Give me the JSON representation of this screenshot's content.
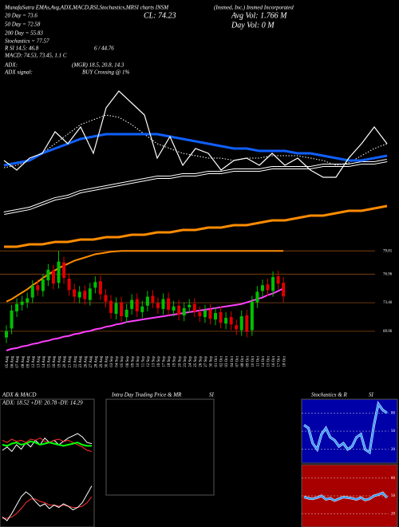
{
  "header": {
    "line1": "MunafaSutra EMAs,Avg,ADX,MACD,RSI,Stochastics,MRSI charts INSM",
    "company": "(Insmed, Inc.) Insmed Incorporated",
    "ma20": "20 Day = 73.6",
    "ma50": "50 Day = 72.58",
    "ma200": "200 Day = 55.83",
    "stoch": "Stochastics = 77.57",
    "rsi": "R SI 14.5: 46.8",
    "rsi2": "6 / 44.76",
    "macd": "MACD: 74.53, 73.45, 1.1 C",
    "adx_label": "ADX:",
    "adx_values": "(MGR) 18.5, 20.8, 14.3",
    "signal_label": "ADX signal:",
    "signal": "BUY Crossing @ 1%",
    "close": "CL: 74.23",
    "avg_vol": "Avg Vol: 1.766 M",
    "day_vol": "Day Vol: 0 M"
  },
  "main_chart": {
    "ylim": [
      -5,
      100
    ],
    "series": [
      {
        "color": "#ffffff",
        "style": "double",
        "values": [
          11,
          12,
          13,
          15,
          17,
          18,
          20,
          21,
          22,
          23,
          24,
          25,
          26,
          26,
          27,
          27,
          28,
          28,
          29,
          29,
          29,
          30,
          30,
          30,
          30,
          31,
          31,
          31,
          32,
          32,
          33
        ]
      },
      {
        "color": "#ff8c00",
        "style": "thick",
        "values": [
          -3,
          -3,
          -2,
          -2,
          -1,
          -1,
          0,
          0,
          1,
          1,
          2,
          2,
          3,
          3,
          4,
          4,
          5,
          5,
          6,
          6,
          7,
          8,
          8,
          9,
          10,
          10,
          11,
          12,
          12,
          13,
          14
        ]
      },
      {
        "color": "#ffffff",
        "style": "dotted",
        "values": [
          30,
          31,
          33,
          36,
          40,
          44,
          48,
          50,
          52,
          51,
          48,
          44,
          40,
          38,
          36,
          35,
          34,
          34,
          33,
          34,
          34,
          35,
          35,
          35,
          34,
          33,
          31,
          32,
          35,
          38,
          40
        ]
      },
      {
        "color": "#1060ff",
        "style": "thick",
        "values": [
          31,
          32,
          33,
          36,
          38,
          40,
          42,
          43,
          44,
          44,
          44,
          44,
          44,
          43,
          42,
          41,
          40,
          39,
          38,
          38,
          37,
          37,
          37,
          36,
          36,
          35,
          34,
          33,
          33,
          34,
          35
        ]
      },
      {
        "color": "#ffffff",
        "style": "thin",
        "values": [
          33,
          29,
          34,
          36,
          45,
          40,
          47,
          36,
          55,
          62,
          57,
          52,
          34,
          43,
          31,
          38,
          36,
          29,
          33,
          34,
          31,
          36,
          31,
          34,
          29,
          26,
          26,
          34,
          40,
          47,
          40
        ]
      }
    ]
  },
  "candles": {
    "ylim": [
      67.5,
      81.2
    ],
    "yticks": [
      79.81,
      76.96,
      73.46,
      69.96
    ],
    "up_color": "#00c000",
    "down_color": "#e00000",
    "dates": [
      "05 Aug",
      "06 Aug",
      "07 Aug",
      "08 Aug",
      "09 Aug",
      "12 Aug",
      "13 Aug",
      "14 Aug",
      "15 Aug",
      "16 Aug",
      "19 Aug",
      "20 Aug",
      "21 Aug",
      "22 Aug",
      "23 Aug",
      "26 Aug",
      "27 Aug",
      "28 Aug",
      "29 Aug",
      "30 Aug",
      "03 Sep",
      "04 Sep",
      "05 Sep",
      "06 Sep",
      "09 Sep",
      "10 Sep",
      "11 Sep",
      "12 Sep",
      "13 Sep",
      "16 Sep",
      "17 Sep",
      "18 Sep",
      "19 Sep",
      "20 Sep",
      "23 Sep",
      "24 Sep",
      "25 Sep",
      "26 Sep",
      "27 Sep",
      "30 Sep",
      "01 Oct",
      "02 Oct",
      "03 Oct",
      "04 Oct",
      "07 Oct",
      "08 Oct",
      "09 Oct",
      "10 Oct",
      "11 Oct",
      "14 Oct",
      "15 Oct",
      "16 Oct",
      "17 Oct",
      "18 Oct"
    ],
    "open": [
      69.2,
      70.3,
      72.4,
      73.2,
      73.5,
      74.1,
      75.6,
      74.9,
      76.2,
      77.4,
      75.9,
      78.4,
      76.4,
      75.1,
      74.1,
      74.9,
      73.8,
      75.3,
      76.1,
      74.4,
      73.7,
      72.1,
      73.5,
      71.7,
      72.7,
      73.9,
      72.3,
      73.1,
      74.3,
      73.4,
      72.7,
      74.0,
      72.5,
      73.1,
      71.9,
      72.9,
      73.3,
      72.3,
      71.7,
      72.6,
      71.4,
      72.3,
      70.9,
      71.7,
      70.7,
      70.1,
      71.9,
      70.1,
      73.5,
      74.9,
      75.7,
      74.9,
      76.7,
      75.9
    ],
    "high": [
      70.7,
      73.2,
      74.0,
      74.3,
      74.7,
      76.2,
      76.3,
      77.0,
      78.2,
      78.1,
      79.8,
      79.1,
      77.1,
      75.8,
      75.5,
      75.6,
      75.9,
      76.7,
      76.8,
      75.1,
      74.4,
      74.1,
      74.2,
      73.3,
      74.5,
      74.6,
      73.7,
      74.9,
      75.0,
      74.1,
      74.6,
      74.7,
      73.7,
      73.8,
      73.5,
      73.9,
      74.0,
      73.0,
      73.2,
      73.3,
      72.9,
      73.0,
      72.3,
      72.4,
      71.4,
      72.5,
      72.6,
      74.3,
      75.5,
      76.3,
      76.4,
      77.3,
      77.4,
      76.6
    ],
    "low": [
      68.5,
      69.6,
      71.7,
      72.5,
      72.8,
      73.4,
      74.3,
      74.2,
      75.5,
      75.1,
      75.2,
      75.8,
      74.3,
      73.5,
      73.4,
      73.2,
      73.1,
      74.6,
      73.8,
      72.9,
      71.5,
      71.4,
      71.1,
      71.0,
      72.0,
      71.7,
      71.6,
      72.4,
      72.8,
      72.1,
      72.0,
      71.9,
      71.8,
      71.3,
      71.2,
      72.2,
      71.7,
      71.1,
      71.0,
      70.8,
      70.7,
      70.3,
      70.2,
      70.1,
      69.5,
      69.4,
      69.2,
      69.4,
      72.8,
      74.2,
      74.3,
      74.2,
      75.1,
      73.5
    ],
    "close": [
      70.0,
      72.5,
      73.3,
      73.6,
      74.0,
      75.5,
      75.0,
      76.3,
      77.5,
      75.8,
      78.5,
      76.5,
      75.0,
      74.2,
      74.8,
      73.9,
      75.2,
      76.0,
      74.5,
      73.6,
      72.2,
      73.4,
      71.8,
      72.6,
      73.8,
      72.4,
      73.0,
      74.2,
      73.5,
      72.8,
      73.9,
      72.6,
      73.0,
      72.0,
      72.8,
      73.2,
      72.4,
      71.8,
      72.5,
      71.5,
      72.2,
      71.0,
      71.6,
      70.8,
      70.2,
      71.8,
      69.9,
      73.6,
      74.8,
      75.6,
      75.0,
      76.6,
      75.8,
      74.23
    ],
    "lines": [
      {
        "color": "#ff8c00",
        "values": [
          73.6,
          73.9,
          74.3,
          74.7,
          75.1,
          75.6,
          76.0,
          76.5,
          76.9,
          77.3,
          77.7,
          78.0,
          78.3,
          78.6,
          78.8,
          79.0,
          79.2,
          79.4,
          79.5,
          79.6,
          79.7,
          79.75,
          79.8,
          79.8,
          79.8,
          79.8,
          79.8,
          79.8,
          79.8,
          79.8,
          79.8,
          79.8,
          79.8,
          79.8,
          79.8,
          79.8,
          79.8,
          79.8,
          79.8,
          79.8,
          79.8,
          79.8,
          79.8,
          79.8,
          79.8,
          79.8,
          79.8,
          79.8,
          79.8,
          79.8,
          79.8,
          79.8,
          79.8,
          79.8
        ]
      },
      {
        "color": "#ff40ff",
        "values": [
          67.6,
          67.8,
          67.9,
          68.1,
          68.2,
          68.4,
          68.5,
          68.7,
          68.8,
          69.0,
          69.1,
          69.3,
          69.4,
          69.6,
          69.7,
          69.9,
          70.0,
          70.2,
          70.3,
          70.5,
          70.6,
          70.8,
          70.9,
          71.1,
          71.2,
          71.3,
          71.4,
          71.5,
          71.6,
          71.7,
          71.8,
          71.9,
          72.0,
          72.1,
          72.2,
          72.3,
          72.4,
          72.5,
          72.6,
          72.7,
          72.8,
          72.9,
          73.0,
          73.1,
          73.2,
          73.3,
          73.5,
          73.7,
          73.9,
          74.1,
          74.4,
          74.6,
          74.9,
          75.2
        ]
      }
    ]
  },
  "adx_panel": {
    "title": "ADX & MACD",
    "text": "ADX: 18.52 +DY: 20.78 -DY: 14.29",
    "adx": {
      "ylim": [
        0,
        50
      ],
      "series": [
        {
          "color": "#ffffff",
          "values": [
            15,
            18,
            14,
            20,
            16,
            22,
            18,
            24,
            20,
            26,
            22,
            24,
            20,
            23,
            26,
            28,
            30,
            27,
            22,
            21
          ]
        },
        {
          "color": "#ff3030",
          "values": [
            24,
            22,
            25,
            23,
            24,
            22,
            25,
            24,
            26,
            23,
            22,
            24,
            25,
            23,
            24,
            22,
            20,
            18,
            15,
            14
          ]
        },
        {
          "color": "#00ff00",
          "values": [
            20,
            19,
            21,
            22,
            20,
            21,
            23,
            22,
            20,
            21,
            22,
            21,
            20,
            19,
            20,
            21,
            22,
            20,
            19,
            19
          ]
        }
      ]
    },
    "macd": {
      "ylim": [
        -2,
        2
      ],
      "series": [
        {
          "color": "#ff3030",
          "values": [
            -1.6,
            -1.6,
            -1.5,
            -1.2,
            -0.8,
            -0.3,
            0.0,
            0.0,
            -0.2,
            -0.3,
            -0.5,
            -0.5,
            -0.6,
            -0.5,
            -0.6,
            -0.7,
            -0.7,
            -0.6,
            -0.3,
            0.2
          ]
        },
        {
          "color": "#ffffff",
          "values": [
            -1.5,
            -1.8,
            -1.2,
            -0.5,
            0.2,
            0.6,
            0.3,
            -0.2,
            -0.6,
            -0.4,
            -0.8,
            -0.5,
            -0.7,
            -0.4,
            -0.6,
            -0.9,
            -0.7,
            -0.3,
            0.4,
            1.1
          ]
        }
      ]
    }
  },
  "intraday_panel": {
    "title": "Intra Day Trading Price & MR",
    "title2": "SI"
  },
  "stoch_panel": {
    "title": "Stochastics & R",
    "title2": "SI",
    "stoch": {
      "ylim": [
        0,
        100
      ],
      "yticks": [
        80,
        50,
        20
      ],
      "color": "#3399ff",
      "values": [
        60,
        55,
        30,
        20,
        45,
        55,
        40,
        35,
        25,
        30,
        20,
        25,
        40,
        45,
        20,
        15,
        60,
        95,
        85,
        80
      ]
    },
    "rsi": {
      "ylim": [
        0,
        100
      ],
      "yticks": [
        80,
        50,
        20
      ],
      "color": "#3399ff",
      "values": [
        48,
        46,
        45,
        47,
        50,
        44,
        46,
        42,
        45,
        48,
        47,
        46,
        44,
        47,
        43,
        45,
        50,
        52,
        55,
        47
      ]
    }
  }
}
